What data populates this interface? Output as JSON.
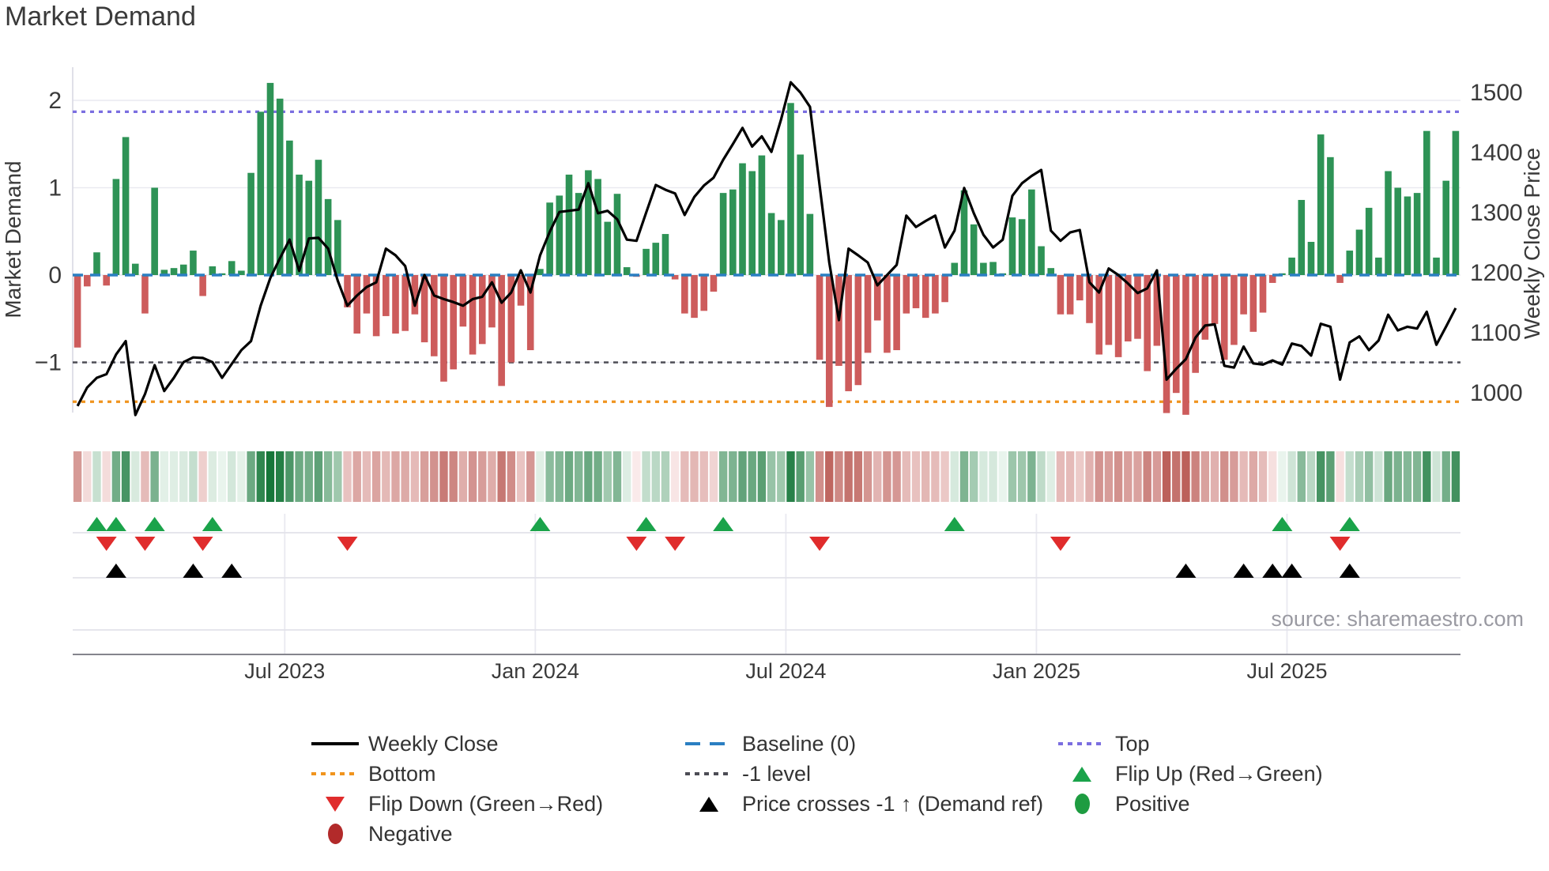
{
  "title": "Market Demand",
  "source": "source: sharemaestro.com",
  "axes": {
    "left_label": "Market Demand",
    "right_label": "Weekly Close Price",
    "left_ticks": [
      {
        "label": "2",
        "v": 2
      },
      {
        "label": "1",
        "v": 1
      },
      {
        "label": "0",
        "v": 0
      },
      {
        "label": "−1",
        "v": -1
      }
    ],
    "right_ticks": [
      {
        "label": "1500",
        "p": 1500
      },
      {
        "label": "1400",
        "p": 1400
      },
      {
        "label": "1300",
        "p": 1300
      },
      {
        "label": "1200",
        "p": 1200
      },
      {
        "label": "1100",
        "p": 1100
      },
      {
        "label": "1000",
        "p": 1000
      }
    ],
    "x_ticks": [
      {
        "label": "Jul 2023",
        "week": 22
      },
      {
        "label": "Jan 2024",
        "week": 48
      },
      {
        "label": "Jul 2024",
        "week": 74
      },
      {
        "label": "Jan 2025",
        "week": 100
      },
      {
        "label": "Jul 2025",
        "week": 126
      }
    ]
  },
  "legend": {
    "items": [
      {
        "label": "Weekly Close",
        "kind": "solid-line",
        "color": "#000000",
        "col": 1,
        "row": 1
      },
      {
        "label": "Baseline (0)",
        "kind": "dash-line",
        "color": "#2b7fc2",
        "col": 2,
        "row": 1
      },
      {
        "label": "Top",
        "kind": "dot-line",
        "color": "#7b6ee0",
        "col": 3,
        "row": 1
      },
      {
        "label": "Bottom",
        "kind": "dot-line",
        "color": "#f0941e",
        "col": 1,
        "row": 2
      },
      {
        "label": "-1 level",
        "kind": "dot-line",
        "color": "#4d4d55",
        "col": 2,
        "row": 2
      },
      {
        "label": "Flip Up (Red→Green)",
        "kind": "tri-up",
        "color": "#1aa34a",
        "col": 3,
        "row": 2
      },
      {
        "label": "Flip Down (Green→Red)",
        "kind": "tri-down",
        "color": "#e02c2c",
        "col": 1,
        "row": 3
      },
      {
        "label": "Price crosses -1 ↑ (Demand ref)",
        "kind": "tri-black",
        "color": "#000000",
        "col": 2,
        "row": 3
      },
      {
        "label": "Positive",
        "kind": "dot",
        "color": "#1e9c41",
        "col": 3,
        "row": 3
      },
      {
        "label": "Negative",
        "kind": "dot",
        "color": "#b22a2a",
        "col": 1,
        "row": 4
      }
    ]
  },
  "chart_data": {
    "type": "combo (bar + line + heatmap + event markers)",
    "title": "Market Demand",
    "x_axis": "weekly, Feb 2023 - Oct 2025",
    "demand_axis": {
      "label": "Market Demand",
      "ticks": [
        2,
        1,
        0,
        -1
      ],
      "range_visible": [
        -1.74,
        2.38
      ]
    },
    "price_axis": {
      "label": "Weekly Close Price",
      "ticks": [
        1500,
        1400,
        1300,
        1200,
        1100,
        1000
      ],
      "range_visible": [
        945,
        1540
      ]
    },
    "ref_lines": {
      "top": 1.87,
      "baseline": 0,
      "minus1": -1,
      "bottom": -1.45
    },
    "demand": [
      -0.83,
      -0.13,
      0.26,
      -0.12,
      1.1,
      1.58,
      0.13,
      -0.44,
      1.0,
      0.06,
      0.08,
      0.12,
      0.28,
      -0.24,
      0.1,
      0.02,
      0.16,
      0.05,
      1.17,
      1.87,
      2.2,
      2.02,
      1.54,
      1.15,
      1.08,
      1.32,
      0.87,
      0.63,
      -0.37,
      -0.67,
      -0.44,
      -0.7,
      -0.47,
      -0.67,
      -0.64,
      -0.45,
      -0.77,
      -0.93,
      -1.22,
      -1.08,
      -0.59,
      -0.91,
      -0.79,
      -0.6,
      -1.27,
      -1.0,
      -0.35,
      -0.86,
      0.07,
      0.83,
      0.91,
      1.15,
      0.94,
      1.2,
      1.1,
      0.61,
      0.93,
      0.09,
      -0.02,
      0.3,
      0.37,
      0.47,
      -0.05,
      -0.44,
      -0.49,
      -0.41,
      -0.19,
      0.94,
      0.98,
      1.28,
      1.19,
      1.37,
      0.71,
      0.63,
      1.97,
      1.38,
      0.7,
      -0.97,
      -1.51,
      -1.04,
      -1.33,
      -1.26,
      -0.89,
      -0.52,
      -0.89,
      -0.86,
      -0.44,
      -0.38,
      -0.49,
      -0.44,
      -0.31,
      0.14,
      0.97,
      0.58,
      0.14,
      0.15,
      0.02,
      0.66,
      0.64,
      0.98,
      0.33,
      0.08,
      -0.45,
      -0.45,
      -0.29,
      -0.55,
      -0.91,
      -0.8,
      -0.94,
      -0.76,
      -0.73,
      -1.1,
      -0.81,
      -1.58,
      -1.35,
      -1.6,
      -1.12,
      -0.74,
      -0.56,
      -0.97,
      -0.8,
      -0.45,
      -0.65,
      -0.43,
      -0.09,
      0.02,
      0.2,
      0.86,
      0.38,
      1.61,
      1.35,
      -0.09,
      0.28,
      0.52,
      0.77,
      0.2,
      1.19,
      1.0,
      0.9,
      0.94,
      1.65,
      0.2,
      1.08,
      1.65
    ],
    "weekly_close": [
      978,
      1009,
      1025,
      1031,
      1064,
      1086,
      963,
      998,
      1046,
      1003,
      1025,
      1051,
      1059,
      1058,
      1051,
      1025,
      1048,
      1071,
      1086,
      1145,
      1191,
      1224,
      1255,
      1203,
      1257,
      1258,
      1240,
      1187,
      1145,
      1162,
      1176,
      1184,
      1240,
      1229,
      1211,
      1145,
      1196,
      1162,
      1156,
      1151,
      1145,
      1156,
      1160,
      1184,
      1150,
      1167,
      1204,
      1167,
      1229,
      1268,
      1301,
      1303,
      1305,
      1349,
      1299,
      1303,
      1289,
      1255,
      1253,
      1300,
      1346,
      1338,
      1332,
      1296,
      1326,
      1345,
      1358,
      1388,
      1414,
      1441,
      1410,
      1427,
      1401,
      1455,
      1517,
      1500,
      1476,
      1345,
      1217,
      1121,
      1240,
      1229,
      1217,
      1179,
      1196,
      1213,
      1295,
      1276,
      1286,
      1295,
      1242,
      1270,
      1341,
      1299,
      1263,
      1242,
      1255,
      1328,
      1349,
      1361,
      1371,
      1270,
      1253,
      1267,
      1271,
      1184,
      1167,
      1207,
      1196,
      1182,
      1166,
      1174,
      1204,
      1022,
      1040,
      1056,
      1092,
      1112,
      1114,
      1045,
      1042,
      1077,
      1049,
      1047,
      1054,
      1047,
      1082,
      1078,
      1062,
      1115,
      1110,
      1022,
      1084,
      1094,
      1071,
      1087,
      1130,
      1104,
      1110,
      1107,
      1135,
      1080,
      1110,
      1141
    ],
    "markers": {
      "flip_up_weeks": [
        2,
        4,
        8,
        14,
        48,
        59,
        67,
        91,
        125,
        132
      ],
      "flip_down_weeks": [
        3,
        7,
        13,
        28,
        58,
        62,
        77,
        102,
        131
      ],
      "price_cross_weeks": [
        4,
        12,
        16,
        115,
        121,
        124,
        126,
        132
      ]
    },
    "heatmap": "same weekly demand values mapped green (positive) / red (negative), intensity proportional to magnitude",
    "colors": {
      "positive_bar": "#2e9356",
      "negative_bar": "#cd5c5c",
      "price_line": "#000000",
      "baseline": "#2b7fc2",
      "top": "#7b6ee0",
      "bottom": "#f0941e",
      "minus1": "#4d4d55",
      "flip_up": "#1aa34a",
      "flip_down": "#e02c2c",
      "price_cross": "#000000",
      "grid": "#e9e9f0",
      "axis_text": "#3a3a3a"
    },
    "legend_position": "below chart, 3 columns"
  }
}
